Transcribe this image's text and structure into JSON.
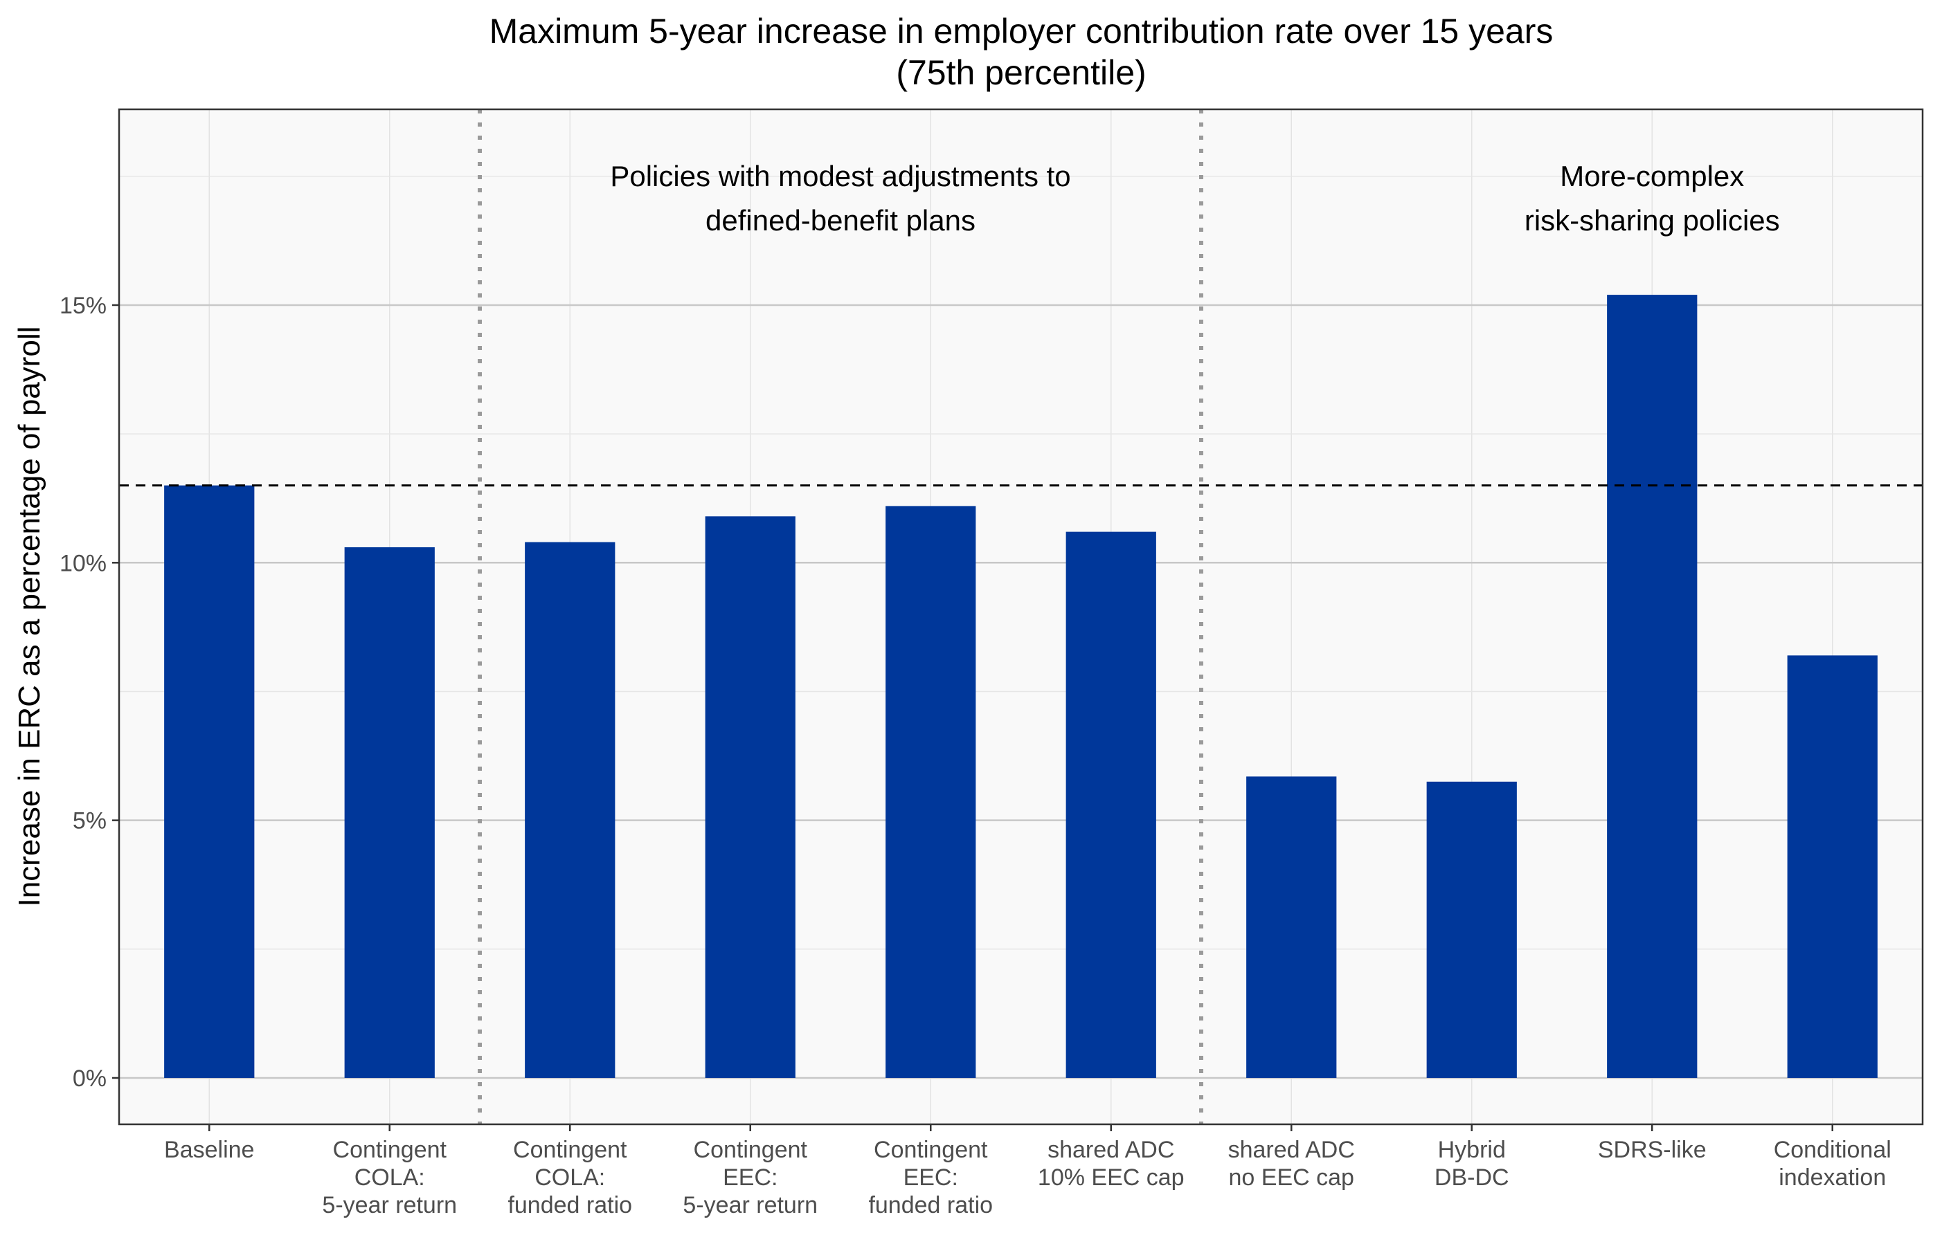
{
  "chart_data": {
    "type": "bar",
    "title": [
      "Maximum 5-year increase in employer contribution rate over 15 years",
      "(75th percentile)"
    ],
    "xlabel": "",
    "ylabel": "Increase in ERC as a percentage of payroll",
    "ylim": [
      -0.9,
      18.8
    ],
    "yticks": [
      0,
      5,
      10,
      15
    ],
    "ytick_labels": [
      "0%",
      "5%",
      "10%",
      "15%"
    ],
    "grid": true,
    "bar_color": "#00379a",
    "categories": [
      [
        "Baseline"
      ],
      [
        "Contingent",
        "COLA:",
        "5-year return"
      ],
      [
        "Contingent",
        "COLA:",
        "funded ratio"
      ],
      [
        "Contingent",
        "EEC:",
        "5-year return"
      ],
      [
        "Contingent",
        "EEC:",
        "funded ratio"
      ],
      [
        "shared ADC",
        "10% EEC cap"
      ],
      [
        "shared ADC",
        "no EEC cap"
      ],
      [
        "Hybrid",
        "DB-DC"
      ],
      [
        "SDRS-like"
      ],
      [
        "Conditional",
        "indexation"
      ]
    ],
    "values": [
      11.5,
      10.3,
      10.4,
      10.9,
      11.1,
      10.6,
      5.85,
      5.75,
      15.2,
      8.2
    ],
    "reference_line": {
      "value": 11.5,
      "style": "dashed"
    },
    "group_dividers": [
      1.5,
      5.5
    ],
    "annotations": [
      {
        "lines": [
          "Policies with modest adjustments to",
          "defined-benefit plans"
        ],
        "x": 3.5,
        "y": 17.5
      },
      {
        "lines": [
          "More-complex",
          "risk-sharing policies"
        ],
        "x": 8.0,
        "y": 17.5
      }
    ]
  }
}
